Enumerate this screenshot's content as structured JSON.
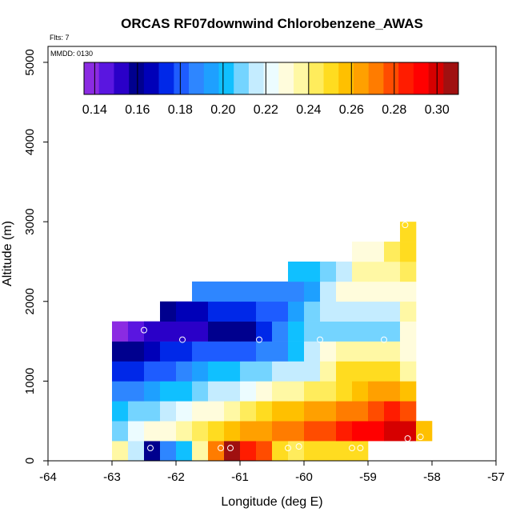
{
  "chart_data": {
    "type": "heatmap",
    "title": "ORCAS RF07downwind Chlorobenzene_AWAS",
    "flights_label": "Flts: 7",
    "date_label": "MMDD: 0130",
    "xlabel": "Longitude (deg E)",
    "ylabel": "Altitude (m)",
    "xlim": [
      -64,
      -57
    ],
    "ylim": [
      0,
      5200
    ],
    "x_ticks": [
      -64,
      -63,
      -62,
      -61,
      -60,
      -59,
      -58,
      -57
    ],
    "x_tick_labels": [
      "-64",
      "-63",
      "-62",
      "-61",
      "-60",
      "-59",
      "-58",
      "-57"
    ],
    "y_ticks": [
      0,
      1000,
      2000,
      3000,
      4000,
      5000
    ],
    "y_tick_labels": [
      "0",
      "1000",
      "2000",
      "3000",
      "4000",
      "5000"
    ],
    "colorbar": {
      "range": [
        0.135,
        0.31
      ],
      "ticks": [
        0.14,
        0.16,
        0.18,
        0.2,
        0.22,
        0.24,
        0.26,
        0.28,
        0.3
      ],
      "tick_labels": [
        "0.14",
        "0.16",
        "0.18",
        "0.20",
        "0.22",
        "0.24",
        "0.26",
        "0.28",
        "0.30"
      ],
      "colors": [
        "#8b2be2",
        "#5a16e0",
        "#2a00c8",
        "#00008e",
        "#0000b8",
        "#0028e8",
        "#1e5cff",
        "#2e86ff",
        "#1ea0ff",
        "#10c0ff",
        "#74d4ff",
        "#c4ecff",
        "#ecfcff",
        "#fffcdc",
        "#fff8a4",
        "#ffec5c",
        "#ffdc20",
        "#ffc000",
        "#ffa000",
        "#ff7c00",
        "#ff4c00",
        "#ff1c00",
        "#ff0000",
        "#d60000",
        "#a01010"
      ]
    },
    "cell_width_deg": 0.25,
    "cell_height_m": 250,
    "cells": [
      {
        "x": -62.875,
        "y": 125,
        "v": 0.238
      },
      {
        "x": -62.625,
        "y": 125,
        "v": 0.215
      },
      {
        "x": -62.375,
        "y": 125,
        "v": 0.158
      },
      {
        "x": -62.125,
        "y": 125,
        "v": 0.185
      },
      {
        "x": -61.875,
        "y": 125,
        "v": 0.198
      },
      {
        "x": -61.625,
        "y": 125,
        "v": 0.238
      },
      {
        "x": -61.375,
        "y": 125,
        "v": 0.268
      },
      {
        "x": -61.125,
        "y": 125,
        "v": 0.306
      },
      {
        "x": -60.875,
        "y": 125,
        "v": 0.286
      },
      {
        "x": -60.625,
        "y": 125,
        "v": 0.276
      },
      {
        "x": -60.375,
        "y": 125,
        "v": 0.25
      },
      {
        "x": -60.125,
        "y": 125,
        "v": 0.246
      },
      {
        "x": -59.875,
        "y": 125,
        "v": 0.25
      },
      {
        "x": -59.625,
        "y": 125,
        "v": 0.25
      },
      {
        "x": -59.375,
        "y": 125,
        "v": 0.25
      },
      {
        "x": -59.125,
        "y": 125,
        "v": 0.25
      },
      {
        "x": -62.875,
        "y": 375,
        "v": 0.212
      },
      {
        "x": -62.625,
        "y": 375,
        "v": 0.22
      },
      {
        "x": -62.375,
        "y": 375,
        "v": 0.226
      },
      {
        "x": -62.125,
        "y": 375,
        "v": 0.232
      },
      {
        "x": -61.875,
        "y": 375,
        "v": 0.236
      },
      {
        "x": -61.625,
        "y": 375,
        "v": 0.246
      },
      {
        "x": -61.375,
        "y": 375,
        "v": 0.252
      },
      {
        "x": -61.125,
        "y": 375,
        "v": 0.256
      },
      {
        "x": -60.875,
        "y": 375,
        "v": 0.262
      },
      {
        "x": -60.625,
        "y": 375,
        "v": 0.266
      },
      {
        "x": -60.375,
        "y": 375,
        "v": 0.27
      },
      {
        "x": -60.125,
        "y": 375,
        "v": 0.274
      },
      {
        "x": -59.875,
        "y": 375,
        "v": 0.278
      },
      {
        "x": -59.625,
        "y": 375,
        "v": 0.282
      },
      {
        "x": -59.375,
        "y": 375,
        "v": 0.286
      },
      {
        "x": -59.125,
        "y": 375,
        "v": 0.29
      },
      {
        "x": -58.875,
        "y": 375,
        "v": 0.294
      },
      {
        "x": -58.625,
        "y": 375,
        "v": 0.298
      },
      {
        "x": -58.375,
        "y": 375,
        "v": 0.3
      },
      {
        "x": -58.125,
        "y": 375,
        "v": 0.256
      },
      {
        "x": -62.875,
        "y": 625,
        "v": 0.198
      },
      {
        "x": -62.625,
        "y": 625,
        "v": 0.206
      },
      {
        "x": -62.375,
        "y": 625,
        "v": 0.212
      },
      {
        "x": -62.125,
        "y": 625,
        "v": 0.216
      },
      {
        "x": -61.875,
        "y": 625,
        "v": 0.22
      },
      {
        "x": -61.625,
        "y": 625,
        "v": 0.226
      },
      {
        "x": -61.375,
        "y": 625,
        "v": 0.232
      },
      {
        "x": -61.125,
        "y": 625,
        "v": 0.238
      },
      {
        "x": -60.875,
        "y": 625,
        "v": 0.244
      },
      {
        "x": -60.625,
        "y": 625,
        "v": 0.25
      },
      {
        "x": -60.375,
        "y": 625,
        "v": 0.254
      },
      {
        "x": -60.125,
        "y": 625,
        "v": 0.258
      },
      {
        "x": -59.875,
        "y": 625,
        "v": 0.262
      },
      {
        "x": -59.625,
        "y": 625,
        "v": 0.266
      },
      {
        "x": -59.375,
        "y": 625,
        "v": 0.27
      },
      {
        "x": -59.125,
        "y": 625,
        "v": 0.274
      },
      {
        "x": -58.875,
        "y": 625,
        "v": 0.28
      },
      {
        "x": -58.625,
        "y": 625,
        "v": 0.286
      },
      {
        "x": -58.375,
        "y": 625,
        "v": 0.276
      },
      {
        "x": -62.875,
        "y": 875,
        "v": 0.186
      },
      {
        "x": -62.625,
        "y": 875,
        "v": 0.19
      },
      {
        "x": -62.375,
        "y": 875,
        "v": 0.194
      },
      {
        "x": -62.125,
        "y": 875,
        "v": 0.198
      },
      {
        "x": -61.875,
        "y": 875,
        "v": 0.202
      },
      {
        "x": -61.625,
        "y": 875,
        "v": 0.208
      },
      {
        "x": -61.375,
        "y": 875,
        "v": 0.214
      },
      {
        "x": -61.125,
        "y": 875,
        "v": 0.218
      },
      {
        "x": -60.875,
        "y": 875,
        "v": 0.224
      },
      {
        "x": -60.625,
        "y": 875,
        "v": 0.228
      },
      {
        "x": -60.375,
        "y": 875,
        "v": 0.234
      },
      {
        "x": -60.125,
        "y": 875,
        "v": 0.238
      },
      {
        "x": -59.875,
        "y": 875,
        "v": 0.242
      },
      {
        "x": -59.625,
        "y": 875,
        "v": 0.246
      },
      {
        "x": -59.375,
        "y": 875,
        "v": 0.25
      },
      {
        "x": -59.125,
        "y": 875,
        "v": 0.256
      },
      {
        "x": -58.875,
        "y": 875,
        "v": 0.262
      },
      {
        "x": -58.625,
        "y": 875,
        "v": 0.266
      },
      {
        "x": -58.375,
        "y": 875,
        "v": 0.256
      },
      {
        "x": -62.875,
        "y": 1125,
        "v": 0.172
      },
      {
        "x": -62.625,
        "y": 1125,
        "v": 0.176
      },
      {
        "x": -62.375,
        "y": 1125,
        "v": 0.18
      },
      {
        "x": -62.125,
        "y": 1125,
        "v": 0.184
      },
      {
        "x": -61.875,
        "y": 1125,
        "v": 0.188
      },
      {
        "x": -61.625,
        "y": 1125,
        "v": 0.194
      },
      {
        "x": -61.375,
        "y": 1125,
        "v": 0.198
      },
      {
        "x": -61.125,
        "y": 1125,
        "v": 0.202
      },
      {
        "x": -60.875,
        "y": 1125,
        "v": 0.206
      },
      {
        "x": -60.625,
        "y": 1125,
        "v": 0.21
      },
      {
        "x": -60.375,
        "y": 1125,
        "v": 0.214
      },
      {
        "x": -60.125,
        "y": 1125,
        "v": 0.214
      },
      {
        "x": -59.875,
        "y": 1125,
        "v": 0.218
      },
      {
        "x": -59.625,
        "y": 1125,
        "v": 0.234
      },
      {
        "x": -59.375,
        "y": 1125,
        "v": 0.25
      },
      {
        "x": -59.125,
        "y": 1125,
        "v": 0.25
      },
      {
        "x": -58.875,
        "y": 1125,
        "v": 0.25
      },
      {
        "x": -58.625,
        "y": 1125,
        "v": 0.25
      },
      {
        "x": -58.375,
        "y": 1125,
        "v": 0.236
      },
      {
        "x": -62.875,
        "y": 1375,
        "v": 0.158
      },
      {
        "x": -62.625,
        "y": 1375,
        "v": 0.16
      },
      {
        "x": -62.375,
        "y": 1375,
        "v": 0.164
      },
      {
        "x": -62.125,
        "y": 1375,
        "v": 0.17
      },
      {
        "x": -61.875,
        "y": 1375,
        "v": 0.174
      },
      {
        "x": -61.625,
        "y": 1375,
        "v": 0.178
      },
      {
        "x": -61.375,
        "y": 1375,
        "v": 0.18
      },
      {
        "x": -61.125,
        "y": 1375,
        "v": 0.182
      },
      {
        "x": -60.875,
        "y": 1375,
        "v": 0.184
      },
      {
        "x": -60.625,
        "y": 1375,
        "v": 0.186
      },
      {
        "x": -60.375,
        "y": 1375,
        "v": 0.19
      },
      {
        "x": -60.125,
        "y": 1375,
        "v": 0.2
      },
      {
        "x": -59.875,
        "y": 1375,
        "v": 0.214
      },
      {
        "x": -59.625,
        "y": 1375,
        "v": 0.232
      },
      {
        "x": -59.375,
        "y": 1375,
        "v": 0.234
      },
      {
        "x": -59.125,
        "y": 1375,
        "v": 0.234
      },
      {
        "x": -58.875,
        "y": 1375,
        "v": 0.234
      },
      {
        "x": -58.625,
        "y": 1375,
        "v": 0.234
      },
      {
        "x": -58.375,
        "y": 1375,
        "v": 0.228
      },
      {
        "x": -62.875,
        "y": 1625,
        "v": 0.14
      },
      {
        "x": -62.625,
        "y": 1625,
        "v": 0.146
      },
      {
        "x": -62.375,
        "y": 1625,
        "v": 0.15
      },
      {
        "x": -62.125,
        "y": 1625,
        "v": 0.152
      },
      {
        "x": -61.875,
        "y": 1625,
        "v": 0.156
      },
      {
        "x": -61.625,
        "y": 1625,
        "v": 0.156
      },
      {
        "x": -61.375,
        "y": 1625,
        "v": 0.158
      },
      {
        "x": -61.125,
        "y": 1625,
        "v": 0.158
      },
      {
        "x": -60.875,
        "y": 1625,
        "v": 0.16
      },
      {
        "x": -60.625,
        "y": 1625,
        "v": 0.172
      },
      {
        "x": -60.375,
        "y": 1625,
        "v": 0.186
      },
      {
        "x": -60.125,
        "y": 1625,
        "v": 0.198
      },
      {
        "x": -59.875,
        "y": 1625,
        "v": 0.212
      },
      {
        "x": -59.625,
        "y": 1625,
        "v": 0.212
      },
      {
        "x": -59.375,
        "y": 1625,
        "v": 0.212
      },
      {
        "x": -59.125,
        "y": 1625,
        "v": 0.212
      },
      {
        "x": -58.875,
        "y": 1625,
        "v": 0.212
      },
      {
        "x": -58.625,
        "y": 1625,
        "v": 0.212
      },
      {
        "x": -58.375,
        "y": 1625,
        "v": 0.232
      },
      {
        "x": -62.125,
        "y": 1875,
        "v": 0.16
      },
      {
        "x": -61.875,
        "y": 1875,
        "v": 0.164
      },
      {
        "x": -61.625,
        "y": 1875,
        "v": 0.168
      },
      {
        "x": -61.375,
        "y": 1875,
        "v": 0.17
      },
      {
        "x": -61.125,
        "y": 1875,
        "v": 0.172
      },
      {
        "x": -60.875,
        "y": 1875,
        "v": 0.174
      },
      {
        "x": -60.625,
        "y": 1875,
        "v": 0.178
      },
      {
        "x": -60.375,
        "y": 1875,
        "v": 0.182
      },
      {
        "x": -60.125,
        "y": 1875,
        "v": 0.192
      },
      {
        "x": -59.875,
        "y": 1875,
        "v": 0.206
      },
      {
        "x": -59.625,
        "y": 1875,
        "v": 0.214
      },
      {
        "x": -59.375,
        "y": 1875,
        "v": 0.214
      },
      {
        "x": -59.125,
        "y": 1875,
        "v": 0.214
      },
      {
        "x": -58.875,
        "y": 1875,
        "v": 0.214
      },
      {
        "x": -58.625,
        "y": 1875,
        "v": 0.214
      },
      {
        "x": -58.375,
        "y": 1875,
        "v": 0.234
      },
      {
        "x": -61.625,
        "y": 2125,
        "v": 0.186
      },
      {
        "x": -61.375,
        "y": 2125,
        "v": 0.186
      },
      {
        "x": -61.125,
        "y": 2125,
        "v": 0.186
      },
      {
        "x": -60.875,
        "y": 2125,
        "v": 0.186
      },
      {
        "x": -60.625,
        "y": 2125,
        "v": 0.186
      },
      {
        "x": -60.375,
        "y": 2125,
        "v": 0.186
      },
      {
        "x": -60.125,
        "y": 2125,
        "v": 0.186
      },
      {
        "x": -59.875,
        "y": 2125,
        "v": 0.192
      },
      {
        "x": -59.625,
        "y": 2125,
        "v": 0.214
      },
      {
        "x": -59.375,
        "y": 2125,
        "v": 0.226
      },
      {
        "x": -59.125,
        "y": 2125,
        "v": 0.226
      },
      {
        "x": -58.875,
        "y": 2125,
        "v": 0.226
      },
      {
        "x": -58.625,
        "y": 2125,
        "v": 0.226
      },
      {
        "x": -58.375,
        "y": 2125,
        "v": 0.232
      },
      {
        "x": -60.125,
        "y": 2375,
        "v": 0.2
      },
      {
        "x": -59.875,
        "y": 2375,
        "v": 0.202
      },
      {
        "x": -59.625,
        "y": 2375,
        "v": 0.208
      },
      {
        "x": -59.375,
        "y": 2375,
        "v": 0.216
      },
      {
        "x": -59.125,
        "y": 2375,
        "v": 0.234
      },
      {
        "x": -58.875,
        "y": 2375,
        "v": 0.234
      },
      {
        "x": -58.625,
        "y": 2375,
        "v": 0.234
      },
      {
        "x": -58.375,
        "y": 2375,
        "v": 0.246
      },
      {
        "x": -59.125,
        "y": 2625,
        "v": 0.226
      },
      {
        "x": -58.875,
        "y": 2625,
        "v": 0.226
      },
      {
        "x": -58.625,
        "y": 2625,
        "v": 0.24
      },
      {
        "x": -58.375,
        "y": 2625,
        "v": 0.25
      },
      {
        "x": -58.375,
        "y": 2875,
        "v": 0.25
      }
    ],
    "sample_points": [
      {
        "x": -62.5,
        "y": 1640
      },
      {
        "x": -61.9,
        "y": 1520
      },
      {
        "x": -60.7,
        "y": 1520
      },
      {
        "x": -59.75,
        "y": 1520
      },
      {
        "x": -58.75,
        "y": 1520
      },
      {
        "x": -58.42,
        "y": 2960
      },
      {
        "x": -62.4,
        "y": 160
      },
      {
        "x": -61.3,
        "y": 160
      },
      {
        "x": -61.15,
        "y": 160
      },
      {
        "x": -60.25,
        "y": 160
      },
      {
        "x": -60.08,
        "y": 180
      },
      {
        "x": -59.25,
        "y": 160
      },
      {
        "x": -59.12,
        "y": 160
      },
      {
        "x": -58.38,
        "y": 280
      },
      {
        "x": -58.18,
        "y": 300
      }
    ]
  }
}
